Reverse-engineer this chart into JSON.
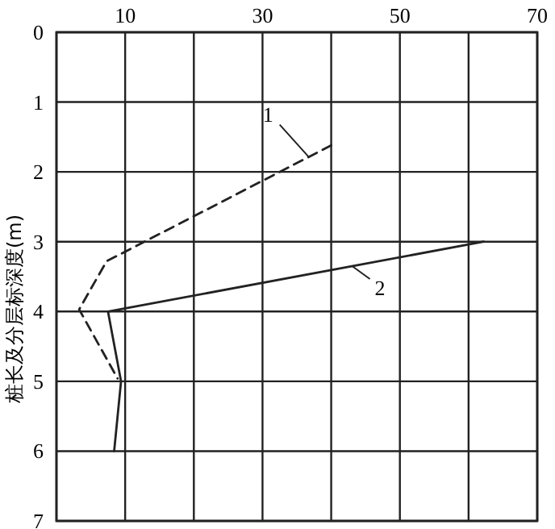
{
  "chart_data": {
    "type": "line",
    "ylabel": "桩长及分层标深度(m)",
    "xlim": [
      0,
      70
    ],
    "xticks": [
      {
        "value": 0,
        "label": null
      },
      10,
      {
        "value": 20,
        "label": null
      },
      30,
      {
        "value": 40,
        "label": null
      },
      50,
      {
        "value": 60,
        "label": null
      },
      70
    ],
    "ylim": [
      7,
      0
    ],
    "yticks": [
      0,
      1,
      2,
      3,
      4,
      5,
      6,
      7
    ],
    "grid": true,
    "marker": "none",
    "series": [
      {
        "name": "1",
        "color": "#222222",
        "line_style": "dashed",
        "x": [
          40,
          7.3,
          3.3,
          8.9
        ],
        "values": [
          1.62,
          3.28,
          3.97,
          4.96
        ]
      },
      {
        "name": "2",
        "color": "#222222",
        "line_style": "solid",
        "x": [
          62.2,
          7.5,
          9.4,
          8.4
        ],
        "values": [
          3,
          4,
          5,
          6
        ]
      }
    ]
  }
}
